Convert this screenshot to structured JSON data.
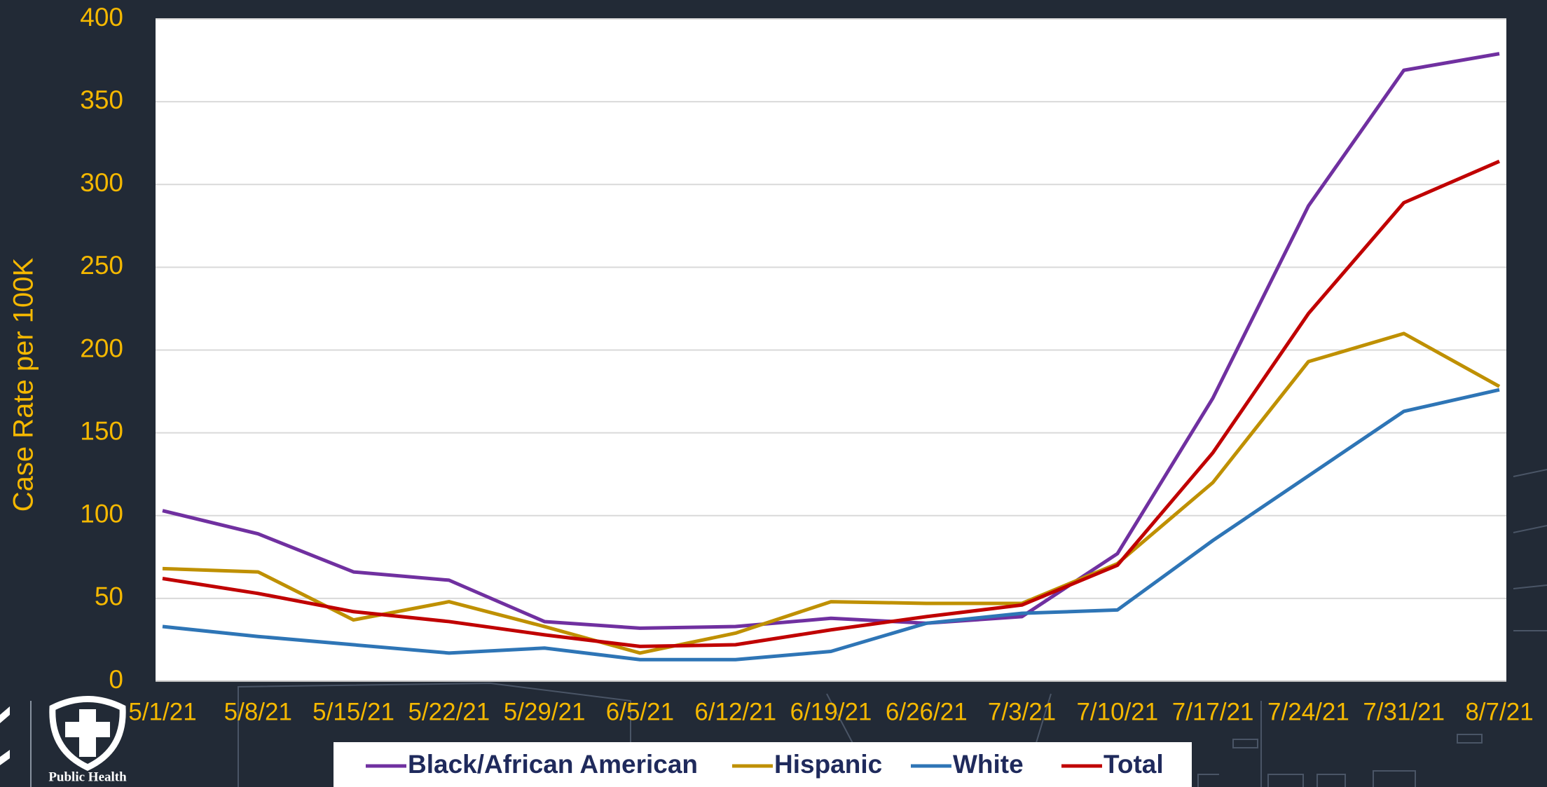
{
  "chart_data": {
    "type": "line",
    "y_axis_label": "Case Rate per 100K",
    "categories": [
      "5/1/21",
      "5/8/21",
      "5/15/21",
      "5/22/21",
      "5/29/21",
      "6/5/21",
      "6/12/21",
      "6/19/21",
      "6/26/21",
      "7/3/21",
      "7/10/21",
      "7/17/21",
      "7/24/21",
      "7/31/21",
      "8/7/21"
    ],
    "series": [
      {
        "name": "Black/African American",
        "color": "#7030a0",
        "values": [
          103,
          89,
          66,
          61,
          36,
          32,
          33,
          38,
          35,
          39,
          77,
          171,
          287,
          369,
          379
        ]
      },
      {
        "name": "Hispanic",
        "color": "#bf9000",
        "values": [
          68,
          66,
          37,
          48,
          33,
          17,
          29,
          48,
          47,
          47,
          71,
          120,
          193,
          210,
          178
        ]
      },
      {
        "name": "White",
        "color": "#2e75b6",
        "values": [
          33,
          27,
          22,
          17,
          20,
          13,
          13,
          18,
          35,
          41,
          43,
          85,
          124,
          163,
          176
        ]
      },
      {
        "name": "Total",
        "color": "#c00000",
        "values": [
          62,
          53,
          42,
          36,
          28,
          21,
          22,
          31,
          39,
          46,
          70,
          138,
          222,
          289,
          314
        ]
      }
    ],
    "ylim": [
      0,
      400
    ],
    "yticks": [
      0,
      50,
      100,
      150,
      200,
      250,
      300,
      350,
      400
    ],
    "grid": true,
    "legend": "bottom"
  },
  "logo": "Public Health"
}
